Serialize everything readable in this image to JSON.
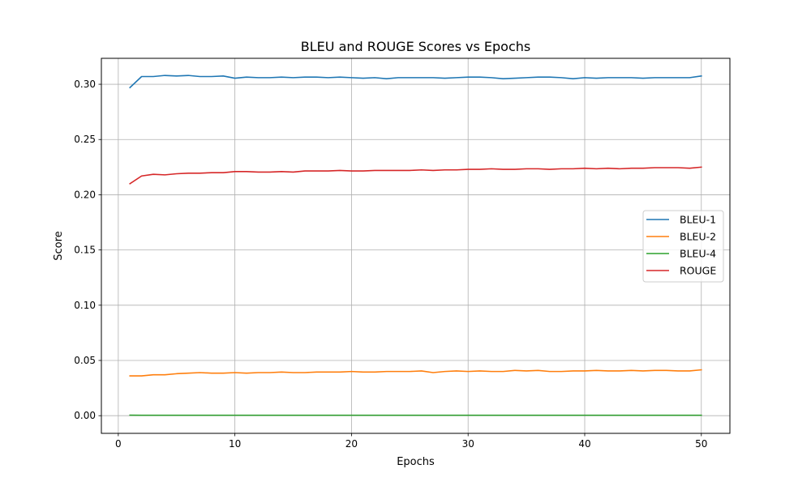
{
  "chart_data": {
    "type": "line",
    "title": "BLEU and ROUGE Scores vs Epochs",
    "xlabel": "Epochs",
    "ylabel": "Score",
    "xlim": [
      -1.45,
      52.45
    ],
    "ylim": [
      -0.016,
      0.3235
    ],
    "grid": true,
    "legend_position": "center-right",
    "xticks": [
      0,
      10,
      20,
      30,
      40,
      50
    ],
    "yticks": [
      0.0,
      0.05,
      0.1,
      0.15,
      0.2,
      0.25,
      0.3
    ],
    "ytick_labels": [
      "0.00",
      "0.05",
      "0.10",
      "0.15",
      "0.20",
      "0.25",
      "0.30"
    ],
    "x": [
      1,
      2,
      3,
      4,
      5,
      6,
      7,
      8,
      9,
      10,
      11,
      12,
      13,
      14,
      15,
      16,
      17,
      18,
      19,
      20,
      21,
      22,
      23,
      24,
      25,
      26,
      27,
      28,
      29,
      30,
      31,
      32,
      33,
      34,
      35,
      36,
      37,
      38,
      39,
      40,
      41,
      42,
      43,
      44,
      45,
      46,
      47,
      48,
      49,
      50
    ],
    "series": [
      {
        "name": "BLEU-1",
        "color": "#1f77b4",
        "values": [
          0.297,
          0.307,
          0.307,
          0.308,
          0.3075,
          0.308,
          0.307,
          0.307,
          0.3075,
          0.3055,
          0.3065,
          0.306,
          0.306,
          0.3065,
          0.306,
          0.3065,
          0.3065,
          0.306,
          0.3065,
          0.306,
          0.3055,
          0.306,
          0.305,
          0.306,
          0.306,
          0.306,
          0.306,
          0.3055,
          0.306,
          0.3065,
          0.3065,
          0.306,
          0.305,
          0.3055,
          0.306,
          0.3065,
          0.3065,
          0.306,
          0.305,
          0.306,
          0.3055,
          0.306,
          0.306,
          0.306,
          0.3055,
          0.306,
          0.306,
          0.306,
          0.306,
          0.3075
        ]
      },
      {
        "name": "BLEU-2",
        "color": "#ff7f0e",
        "values": [
          0.036,
          0.036,
          0.037,
          0.037,
          0.038,
          0.0385,
          0.039,
          0.0385,
          0.0385,
          0.039,
          0.0385,
          0.039,
          0.039,
          0.0395,
          0.039,
          0.039,
          0.0395,
          0.0395,
          0.0395,
          0.04,
          0.0395,
          0.0395,
          0.04,
          0.04,
          0.04,
          0.0405,
          0.039,
          0.04,
          0.0405,
          0.04,
          0.0405,
          0.04,
          0.04,
          0.041,
          0.0405,
          0.041,
          0.04,
          0.04,
          0.0405,
          0.0405,
          0.041,
          0.0405,
          0.0405,
          0.041,
          0.0405,
          0.041,
          0.041,
          0.0405,
          0.0405,
          0.0415
        ]
      },
      {
        "name": "BLEU-4",
        "color": "#2ca02c",
        "values": [
          0.0005,
          0.0004,
          0.0004,
          0.0004,
          0.0004,
          0.0004,
          0.0004,
          0.0004,
          0.0004,
          0.0004,
          0.0004,
          0.0004,
          0.0004,
          0.0004,
          0.0004,
          0.0004,
          0.0004,
          0.0004,
          0.0004,
          0.0004,
          0.0004,
          0.0004,
          0.0004,
          0.0004,
          0.0004,
          0.0004,
          0.0004,
          0.0004,
          0.0004,
          0.0004,
          0.0004,
          0.0004,
          0.0004,
          0.0004,
          0.0004,
          0.0004,
          0.0004,
          0.0004,
          0.0004,
          0.0004,
          0.0004,
          0.0004,
          0.0004,
          0.0004,
          0.0004,
          0.0004,
          0.0004,
          0.0004,
          0.0004,
          0.0004
        ]
      },
      {
        "name": "ROUGE",
        "color": "#d62728",
        "values": [
          0.21,
          0.217,
          0.2185,
          0.218,
          0.219,
          0.2195,
          0.2195,
          0.22,
          0.22,
          0.221,
          0.221,
          0.2205,
          0.2205,
          0.221,
          0.2205,
          0.2215,
          0.2215,
          0.2215,
          0.222,
          0.2215,
          0.2215,
          0.222,
          0.222,
          0.222,
          0.222,
          0.2225,
          0.222,
          0.2225,
          0.2225,
          0.223,
          0.223,
          0.2235,
          0.223,
          0.223,
          0.2235,
          0.2235,
          0.223,
          0.2235,
          0.2235,
          0.224,
          0.2235,
          0.224,
          0.2235,
          0.224,
          0.224,
          0.2245,
          0.2245,
          0.2245,
          0.224,
          0.225
        ]
      }
    ]
  }
}
